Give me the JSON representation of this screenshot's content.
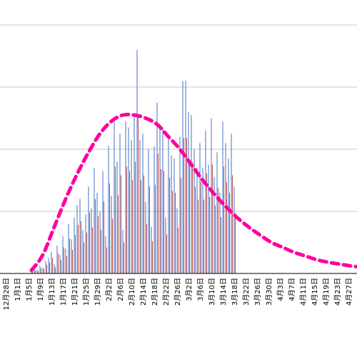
{
  "chart_data": {
    "type": "bar",
    "title": "",
    "xlabel": "",
    "ylabel": "",
    "ylim": [
      0,
      400
    ],
    "grid": true,
    "y_ticks": [
      0,
      100,
      200,
      300,
      400
    ],
    "x_tick_labels": [
      "12月28日",
      "1月1日",
      "1月5日",
      "1月9日",
      "1月13日",
      "1月17日",
      "1月21日",
      "1月25日",
      "1月29日",
      "2月2日",
      "2月6日",
      "2月10日",
      "2月14日",
      "2月18日",
      "2月22日",
      "2月26日",
      "3月2日",
      "3月6日",
      "3月10日",
      "3月14日",
      "3月18日",
      "3月22日",
      "3月26日",
      "3月30日",
      "4月3日",
      "4月7日",
      "4月11日",
      "4月15日",
      "4月19日",
      "4月23日",
      "4月27日"
    ],
    "start_date": "12月28日",
    "series": [
      {
        "kind": "bar",
        "color": "#4472C4",
        "start_offset": 8,
        "values": [
          5,
          8,
          6,
          12,
          10,
          20,
          25,
          35,
          15,
          45,
          30,
          60,
          40,
          80,
          55,
          90,
          110,
          120,
          70,
          95,
          140,
          105,
          170,
          130,
          100,
          165,
          60,
          205,
          125,
          245,
          180,
          225,
          70,
          245,
          235,
          215,
          255,
          360,
          215,
          225,
          115,
          200,
          75,
          205,
          275,
          240,
          235,
          90,
          220,
          190,
          185,
          105,
          220,
          310,
          310,
          260,
          255,
          200,
          170,
          210,
          170,
          230,
          175,
          250,
          155,
          195,
          130,
          245,
          210,
          185,
          225,
          140
        ]
      },
      {
        "kind": "bar",
        "color": "#C0504D",
        "start_offset": 8,
        "values": [
          3,
          5,
          4,
          8,
          7,
          14,
          18,
          25,
          10,
          32,
          22,
          42,
          28,
          56,
          38,
          62,
          78,
          84,
          50,
          66,
          98,
          74,
          120,
          92,
          70,
          116,
          42,
          145,
          88,
          172,
          126,
          158,
          50,
          172,
          165,
          150,
          180,
          252,
          150,
          158,
          80,
          140,
          52,
          143,
          193,
          168,
          165,
          63,
          154,
          133,
          130,
          74,
          154,
          218,
          218,
          182,
          179,
          140,
          119,
          147,
          119,
          161,
          123,
          175,
          109,
          137,
          91,
          172,
          147,
          130,
          158,
          98
        ]
      },
      {
        "kind": "line",
        "style": "dashed",
        "color": "#FF00A0",
        "x": [
          8,
          12,
          16,
          20,
          24,
          28,
          32,
          36,
          40,
          44,
          48,
          52,
          56,
          60,
          64,
          68,
          72,
          76,
          80,
          84,
          88,
          92,
          96,
          100,
          104,
          108,
          112,
          116,
          120,
          124,
          128
        ],
        "values": [
          5,
          30,
          75,
          120,
          160,
          195,
          225,
          245,
          255,
          255,
          250,
          240,
          220,
          200,
          175,
          150,
          128,
          108,
          90,
          75,
          62,
          50,
          42,
          34,
          28,
          22,
          18,
          15,
          12,
          10,
          8
        ]
      }
    ]
  }
}
